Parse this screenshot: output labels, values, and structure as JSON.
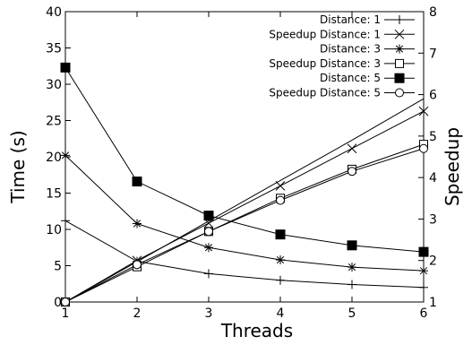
{
  "chart_data": {
    "type": "line",
    "xlabel": "Threads",
    "ylabel": "Time (s)",
    "y2label": "Speedup",
    "x": [
      1,
      2,
      3,
      4,
      5,
      6
    ],
    "xlim": [
      1,
      6
    ],
    "ylim": [
      0,
      40
    ],
    "y2lim": [
      1,
      8
    ],
    "x_ticks": [
      1,
      2,
      3,
      4,
      5,
      6
    ],
    "y_ticks": [
      0,
      5,
      10,
      15,
      20,
      25,
      30,
      35,
      40
    ],
    "y2_ticks": [
      1,
      2,
      3,
      4,
      5,
      6,
      7,
      8
    ],
    "grid": false,
    "legend_position": "top-right",
    "series": [
      {
        "name": "Distance: 1",
        "axis": "left",
        "marker": "plus",
        "values": [
          11.2,
          5.6,
          3.9,
          3.0,
          2.4,
          2.0
        ]
      },
      {
        "name": "Speedup Distance: 1",
        "axis": "right",
        "marker": "x",
        "values": [
          1.0,
          2.0,
          2.9,
          3.8,
          4.7,
          5.6
        ]
      },
      {
        "name": "Distance: 3",
        "axis": "left",
        "marker": "star",
        "values": [
          20.2,
          10.8,
          7.5,
          5.8,
          4.8,
          4.3
        ]
      },
      {
        "name": "Speedup Distance: 3",
        "axis": "right",
        "marker": "square-open",
        "values": [
          1.0,
          1.85,
          2.7,
          3.5,
          4.2,
          4.8
        ]
      },
      {
        "name": "Distance: 5",
        "axis": "left",
        "marker": "square-filled",
        "values": [
          32.3,
          16.6,
          11.9,
          9.3,
          7.8,
          6.9
        ]
      },
      {
        "name": "Speedup Distance: 5",
        "axis": "right",
        "marker": "circle-open",
        "values": [
          1.0,
          1.9,
          2.7,
          3.45,
          4.15,
          4.7
        ]
      }
    ],
    "extra_lines": [
      {
        "axis": "right",
        "values": [
          1.0,
          1.97,
          2.95,
          3.93,
          4.9,
          5.9
        ]
      }
    ]
  }
}
